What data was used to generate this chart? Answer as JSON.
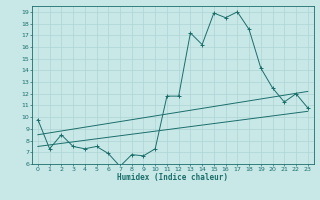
{
  "xlabel": "Humidex (Indice chaleur)",
  "bg_color": "#c8e8e8",
  "line_color": "#1a6e6a",
  "grid_color": "#a8d0d0",
  "xlim": [
    -0.5,
    23.5
  ],
  "ylim": [
    6,
    19.5
  ],
  "yticks": [
    6,
    7,
    8,
    9,
    10,
    11,
    12,
    13,
    14,
    15,
    16,
    17,
    18,
    19
  ],
  "xticks": [
    0,
    1,
    2,
    3,
    4,
    5,
    6,
    7,
    8,
    9,
    10,
    11,
    12,
    13,
    14,
    15,
    16,
    17,
    18,
    19,
    20,
    21,
    22,
    23
  ],
  "series1_x": [
    0,
    1,
    2,
    3,
    4,
    5,
    6,
    7,
    8,
    9,
    10,
    11,
    12,
    13,
    14,
    15,
    16,
    17,
    18,
    19,
    20,
    21,
    22,
    23
  ],
  "series1_y": [
    9.8,
    7.3,
    8.5,
    7.5,
    7.3,
    7.5,
    6.9,
    5.8,
    6.8,
    6.7,
    7.3,
    11.8,
    11.8,
    17.2,
    16.2,
    18.9,
    18.5,
    19.0,
    17.5,
    14.2,
    12.5,
    11.3,
    12.0,
    10.8
  ],
  "series2_x": [
    0,
    23
  ],
  "series2_y": [
    7.5,
    10.5
  ],
  "series3_x": [
    0,
    23
  ],
  "series3_y": [
    8.5,
    12.2
  ]
}
